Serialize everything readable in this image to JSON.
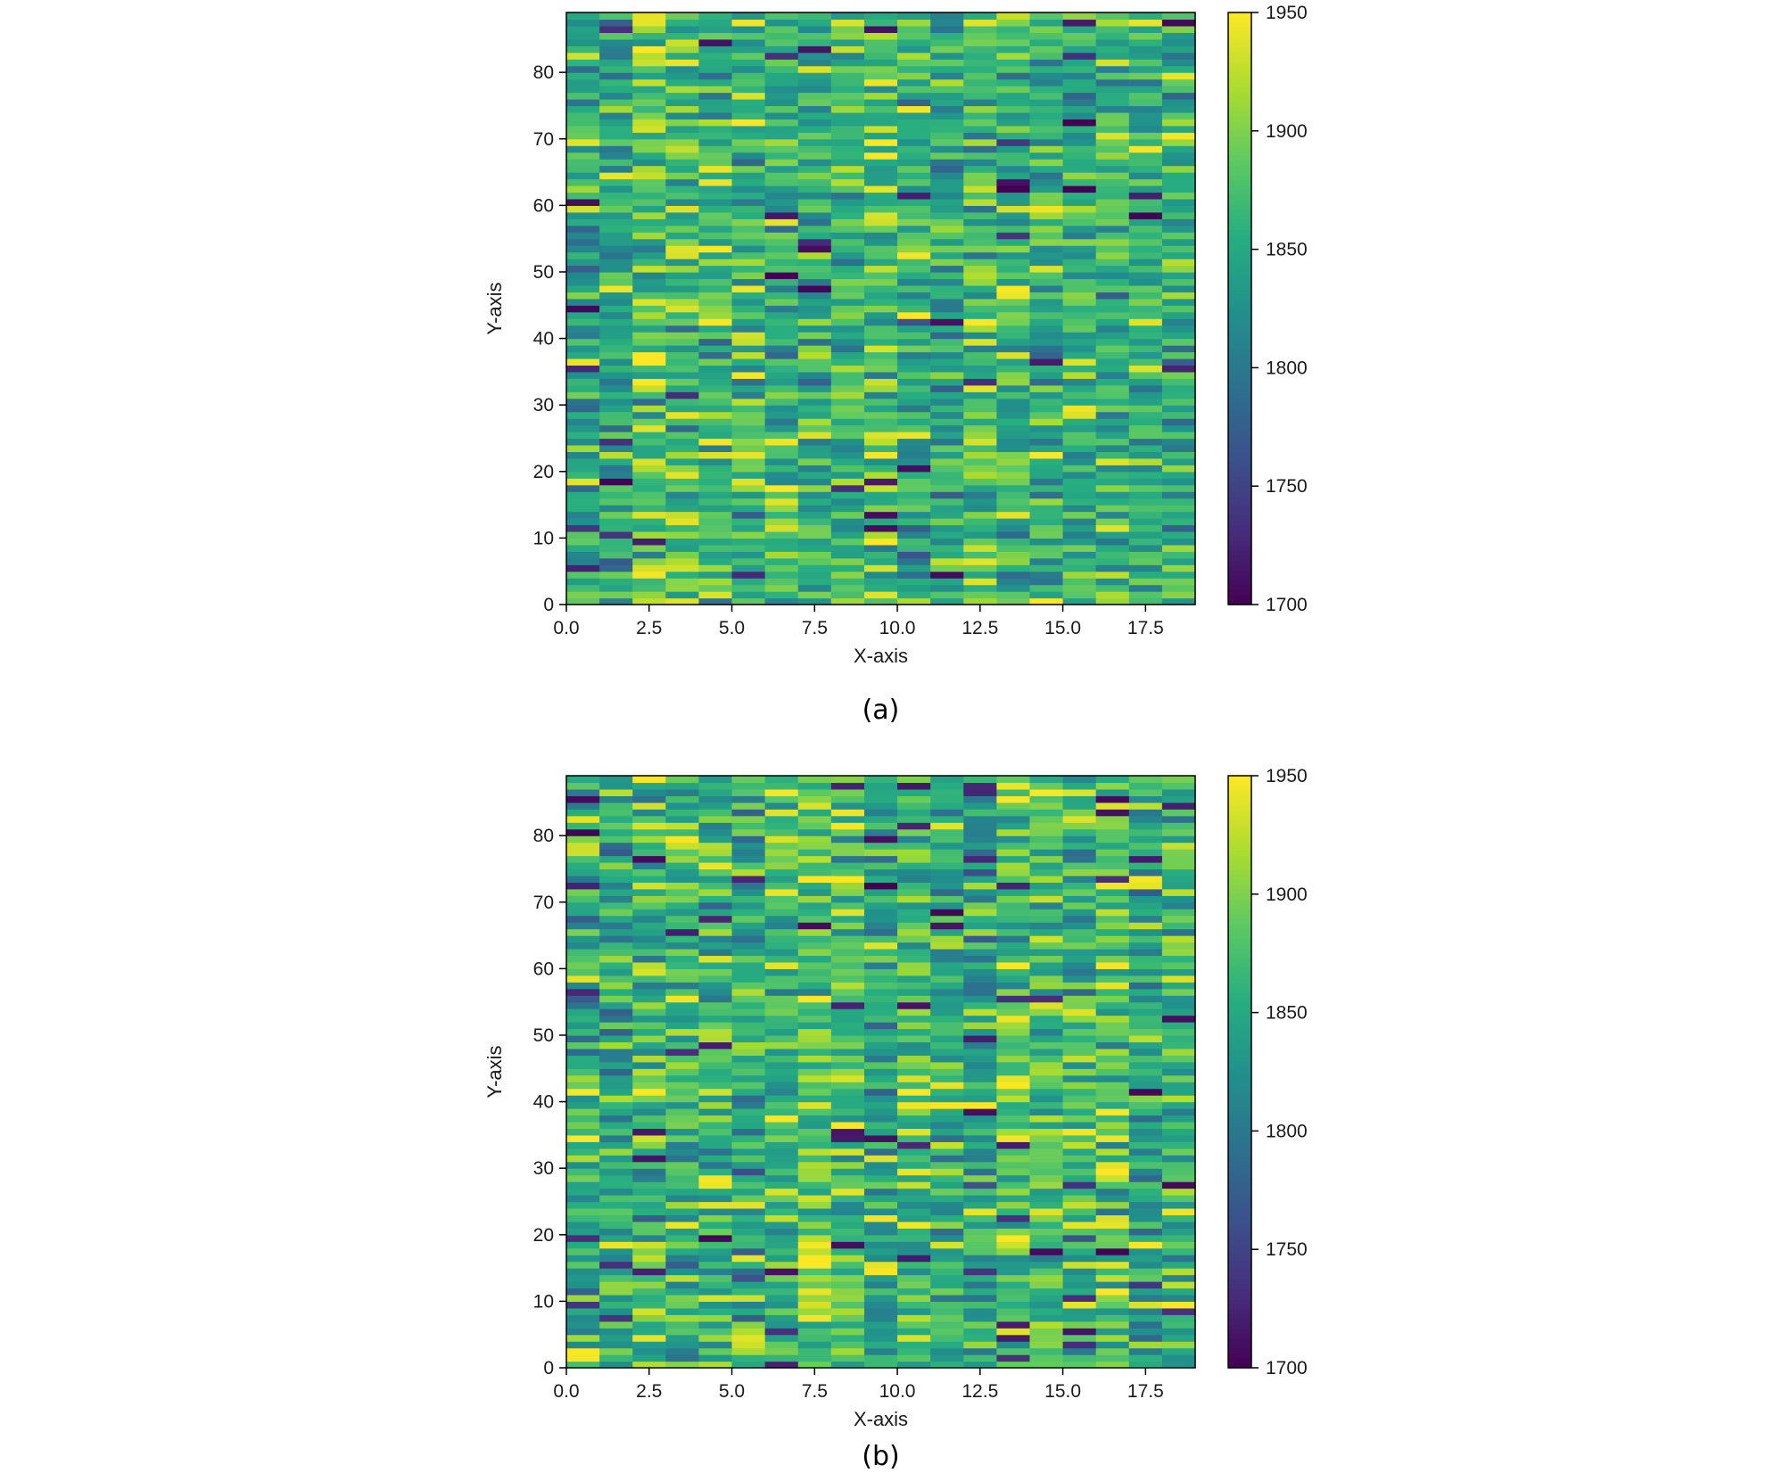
{
  "chart_data": [
    {
      "type": "heatmap",
      "caption": "(a)",
      "xlabel": "X-axis",
      "ylabel": "Y-axis",
      "x_ticks": [
        "0.0",
        "2.5",
        "5.0",
        "7.5",
        "10.0",
        "12.5",
        "15.0",
        "17.5"
      ],
      "y_ticks": [
        "0",
        "10",
        "20",
        "30",
        "40",
        "50",
        "60",
        "70",
        "80"
      ],
      "xlim": [
        0,
        19
      ],
      "ylim": [
        0,
        89
      ],
      "colorbar": {
        "colormap": "viridis",
        "range": [
          1700,
          1950
        ],
        "ticks": [
          "1700",
          "1750",
          "1800",
          "1850",
          "1900",
          "1950"
        ]
      },
      "grid": {
        "columns": 19,
        "rows": 89,
        "values_note": ""
      },
      "seed": 7
    },
    {
      "type": "heatmap",
      "caption": "(b)",
      "xlabel": "X-axis",
      "ylabel": "Y-axis",
      "x_ticks": [
        "0.0",
        "2.5",
        "5.0",
        "7.5",
        "10.0",
        "12.5",
        "15.0",
        "17.5"
      ],
      "y_ticks": [
        "0",
        "10",
        "20",
        "30",
        "40",
        "50",
        "60",
        "70",
        "80"
      ],
      "xlim": [
        0,
        19
      ],
      "ylim": [
        0,
        89
      ],
      "colorbar": {
        "colormap": "viridis",
        "range": [
          1700,
          1950
        ],
        "ticks": [
          "1700",
          "1750",
          "1800",
          "1850",
          "1900",
          "1950"
        ]
      },
      "grid": {
        "columns": 19,
        "rows": 89,
        "values_note": ""
      },
      "seed": 23
    }
  ],
  "colors": {
    "viridis_stops": [
      "#440154",
      "#472d7b",
      "#3b528b",
      "#2c728e",
      "#21918c",
      "#28ae80",
      "#5ec962",
      "#addc30",
      "#fde725"
    ],
    "axis": "#000000"
  }
}
